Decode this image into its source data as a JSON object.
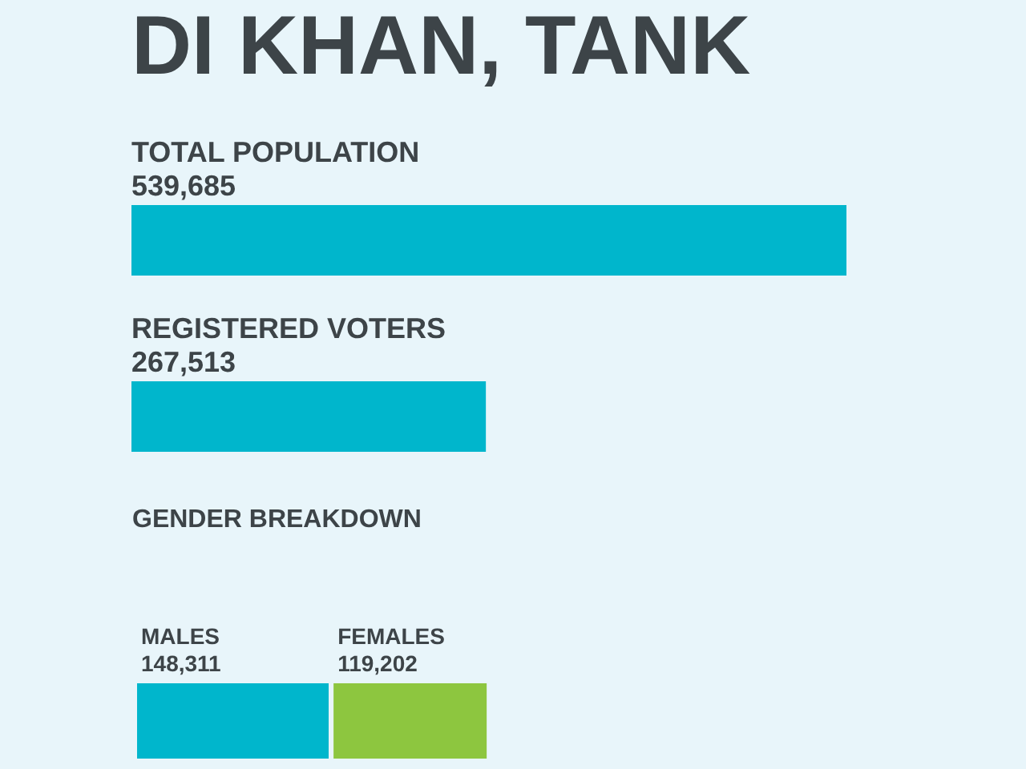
{
  "chart_data": [
    {
      "type": "bar",
      "title": "DI KHAN, TANK",
      "orientation": "horizontal",
      "tick_labels": false,
      "color": "#00b6cc",
      "categories": [
        "TOTAL POPULATION",
        "REGISTERED VOTERS"
      ],
      "values": [
        539685,
        267513
      ],
      "value_labels": [
        "539,685",
        "267,513"
      ]
    },
    {
      "type": "bar",
      "title": "GENDER BREAKDOWN",
      "orientation": "horizontal",
      "stacked": true,
      "tick_labels": false,
      "categories": [
        null
      ],
      "series": [
        {
          "name": "MALES",
          "color": "#00b6cc",
          "values": [
            148311
          ],
          "value_labels": [
            "148,311"
          ]
        },
        {
          "name": "FEMALES",
          "color": "#8dc63f",
          "values": [
            119202
          ],
          "value_labels": [
            "119,202"
          ]
        }
      ]
    }
  ]
}
